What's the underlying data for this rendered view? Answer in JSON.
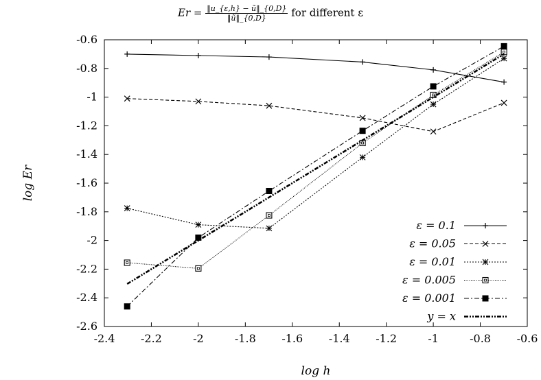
{
  "chart_data": {
    "type": "line",
    "title": {
      "lhs": "Er =",
      "numerator": "‖u_{ε,h} − ũ‖_{0,D}",
      "denominator": "‖ũ‖_{0,D}",
      "suffix": "for different ε"
    },
    "xlabel": "log h",
    "ylabel": "log Er",
    "xlim": [
      -2.4,
      -0.6
    ],
    "ylim": [
      -2.6,
      -0.6
    ],
    "xticks": [
      "-2.4",
      "-2.2",
      "-2",
      "-1.8",
      "-1.6",
      "-1.4",
      "-1.2",
      "-1",
      "-0.8",
      "-0.6"
    ],
    "yticks": [
      "-0.6",
      "-0.8",
      "-1",
      "-1.2",
      "-1.4",
      "-1.6",
      "-1.8",
      "-2",
      "-2.2",
      "-2.4",
      "-2.6"
    ],
    "grid": false,
    "legend_position": "bottom-right",
    "x": [
      -2.303,
      -2.0,
      -1.699,
      -1.301,
      -1.0,
      -0.699
    ],
    "series": [
      {
        "name": "ε = 0.1",
        "marker": "plus",
        "dash": "solid",
        "values": [
          -0.7,
          -0.71,
          -0.72,
          -0.755,
          -0.81,
          -0.895
        ]
      },
      {
        "name": "ε = 0.05",
        "marker": "cross",
        "dash": "dashed",
        "values": [
          -1.01,
          -1.03,
          -1.06,
          -1.145,
          -1.24,
          -1.04
        ]
      },
      {
        "name": "ε = 0.01",
        "marker": "star",
        "dash": "dotted",
        "values": [
          -1.775,
          -1.89,
          -1.915,
          -1.42,
          -1.05,
          -0.73
        ]
      },
      {
        "name": "ε = 0.005",
        "marker": "open-square",
        "dash": "fine-dotted",
        "values": [
          -2.155,
          -2.195,
          -1.825,
          -1.32,
          -0.985,
          -0.685
        ]
      },
      {
        "name": "ε = 0.001",
        "marker": "filled-square",
        "dash": "dash-dot",
        "values": [
          -2.46,
          -1.98,
          -1.655,
          -1.235,
          -0.925,
          -0.645
        ]
      },
      {
        "name": "y = x",
        "marker": "none",
        "dash": "thick-dash-dot-dot",
        "values": [
          -2.303,
          -2.0,
          -1.699,
          -1.301,
          -1.0,
          -0.699
        ]
      }
    ]
  }
}
